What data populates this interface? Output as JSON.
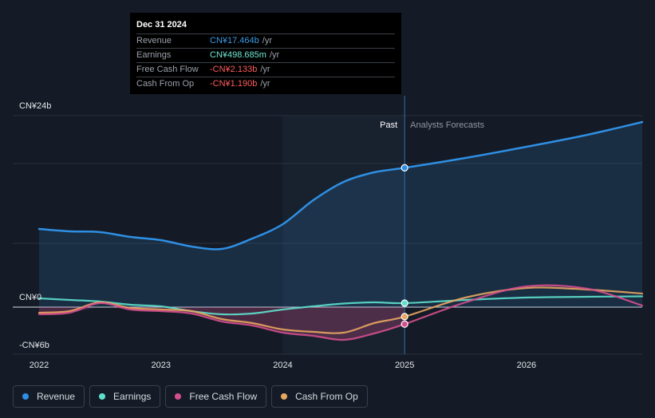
{
  "tooltip": {
    "date": "Dec 31 2024",
    "rows": [
      {
        "label": "Revenue",
        "value": "CN¥17.464b",
        "unit": "/yr",
        "color": "#3a9be5"
      },
      {
        "label": "Earnings",
        "value": "CN¥498.685m",
        "unit": "/yr",
        "color": "#6ee7d3"
      },
      {
        "label": "Free Cash Flow",
        "value": "-CN¥2.133b",
        "unit": "/yr",
        "color": "#ff5a5a"
      },
      {
        "label": "Cash From Op",
        "value": "-CN¥1.190b",
        "unit": "/yr",
        "color": "#ff5a5a"
      }
    ]
  },
  "past_label": "Past",
  "forecast_label": "Analysts Forecasts",
  "legend": [
    {
      "label": "Revenue",
      "color": "#2f8fe3"
    },
    {
      "label": "Earnings",
      "color": "#5ee0cc"
    },
    {
      "label": "Free Cash Flow",
      "color": "#d44f8e"
    },
    {
      "label": "Cash From Op",
      "color": "#e8a660"
    }
  ],
  "chart_data": {
    "type": "line",
    "title": "",
    "xlabel": "",
    "ylabel": "",
    "units": "CN¥ billions",
    "ylim": [
      -6,
      24
    ],
    "xlim": [
      2022,
      2026.95
    ],
    "x_ticks": [
      2022,
      2023,
      2024,
      2025,
      2026
    ],
    "x_tick_labels": [
      "2022",
      "2023",
      "2024",
      "2025",
      "2026"
    ],
    "y_tick_labels": [
      {
        "value": 24,
        "label": "CN¥24b"
      },
      {
        "value": 0,
        "label": "CN¥0"
      },
      {
        "value": -6,
        "label": "-CN¥6b"
      }
    ],
    "divider_x": 2025,
    "past_shade_start": 2024,
    "series": [
      {
        "name": "Revenue",
        "color": "#2f8fe3",
        "points": [
          [
            2022,
            9.8
          ],
          [
            2022.25,
            9.5
          ],
          [
            2022.5,
            9.4
          ],
          [
            2022.75,
            8.8
          ],
          [
            2023,
            8.4
          ],
          [
            2023.25,
            7.6
          ],
          [
            2023.5,
            7.3
          ],
          [
            2023.75,
            8.6
          ],
          [
            2024,
            10.4
          ],
          [
            2024.25,
            13.4
          ],
          [
            2024.5,
            15.7
          ],
          [
            2024.75,
            16.9
          ],
          [
            2025,
            17.46
          ],
          [
            2025.5,
            18.7
          ],
          [
            2026,
            20.1
          ],
          [
            2026.5,
            21.6
          ],
          [
            2026.95,
            23.2
          ]
        ]
      },
      {
        "name": "Earnings",
        "color": "#5ee0cc",
        "points": [
          [
            2022,
            1.1
          ],
          [
            2022.25,
            0.9
          ],
          [
            2022.5,
            0.7
          ],
          [
            2022.75,
            0.3
          ],
          [
            2023,
            0.1
          ],
          [
            2023.25,
            -0.5
          ],
          [
            2023.5,
            -0.9
          ],
          [
            2023.75,
            -0.8
          ],
          [
            2024,
            -0.3
          ],
          [
            2024.25,
            0.1
          ],
          [
            2024.5,
            0.45
          ],
          [
            2024.75,
            0.6
          ],
          [
            2025,
            0.5
          ],
          [
            2025.5,
            0.9
          ],
          [
            2026,
            1.2
          ],
          [
            2026.5,
            1.3
          ],
          [
            2026.95,
            1.35
          ]
        ]
      },
      {
        "name": "Free Cash Flow",
        "color": "#d44f8e",
        "points": [
          [
            2022,
            -0.9
          ],
          [
            2022.25,
            -0.7
          ],
          [
            2022.5,
            0.5
          ],
          [
            2022.75,
            -0.3
          ],
          [
            2023,
            -0.5
          ],
          [
            2023.25,
            -0.8
          ],
          [
            2023.5,
            -1.8
          ],
          [
            2023.75,
            -2.3
          ],
          [
            2024,
            -3.2
          ],
          [
            2024.25,
            -3.6
          ],
          [
            2024.5,
            -4.1
          ],
          [
            2024.75,
            -3.3
          ],
          [
            2025,
            -2.13
          ],
          [
            2025.5,
            0.6
          ],
          [
            2026,
            2.6
          ],
          [
            2026.5,
            2.3
          ],
          [
            2026.95,
            0.2
          ]
        ]
      },
      {
        "name": "Cash From Op",
        "color": "#e8a660",
        "points": [
          [
            2022,
            -0.7
          ],
          [
            2022.25,
            -0.5
          ],
          [
            2022.5,
            0.6
          ],
          [
            2022.75,
            -0.1
          ],
          [
            2023,
            -0.3
          ],
          [
            2023.25,
            -0.5
          ],
          [
            2023.5,
            -1.5
          ],
          [
            2023.75,
            -2.0
          ],
          [
            2024,
            -2.8
          ],
          [
            2024.25,
            -3.1
          ],
          [
            2024.5,
            -3.2
          ],
          [
            2024.75,
            -2.0
          ],
          [
            2025,
            -1.19
          ],
          [
            2025.5,
            1.2
          ],
          [
            2026,
            2.4
          ],
          [
            2026.5,
            2.2
          ],
          [
            2026.95,
            1.7
          ]
        ]
      }
    ],
    "markers": [
      {
        "series": "Revenue",
        "x": 2025,
        "y": 17.46
      },
      {
        "series": "Earnings",
        "x": 2025,
        "y": 0.5
      },
      {
        "series": "Cash From Op",
        "x": 2025,
        "y": -1.19
      },
      {
        "series": "Free Cash Flow",
        "x": 2025,
        "y": -2.13
      }
    ]
  }
}
